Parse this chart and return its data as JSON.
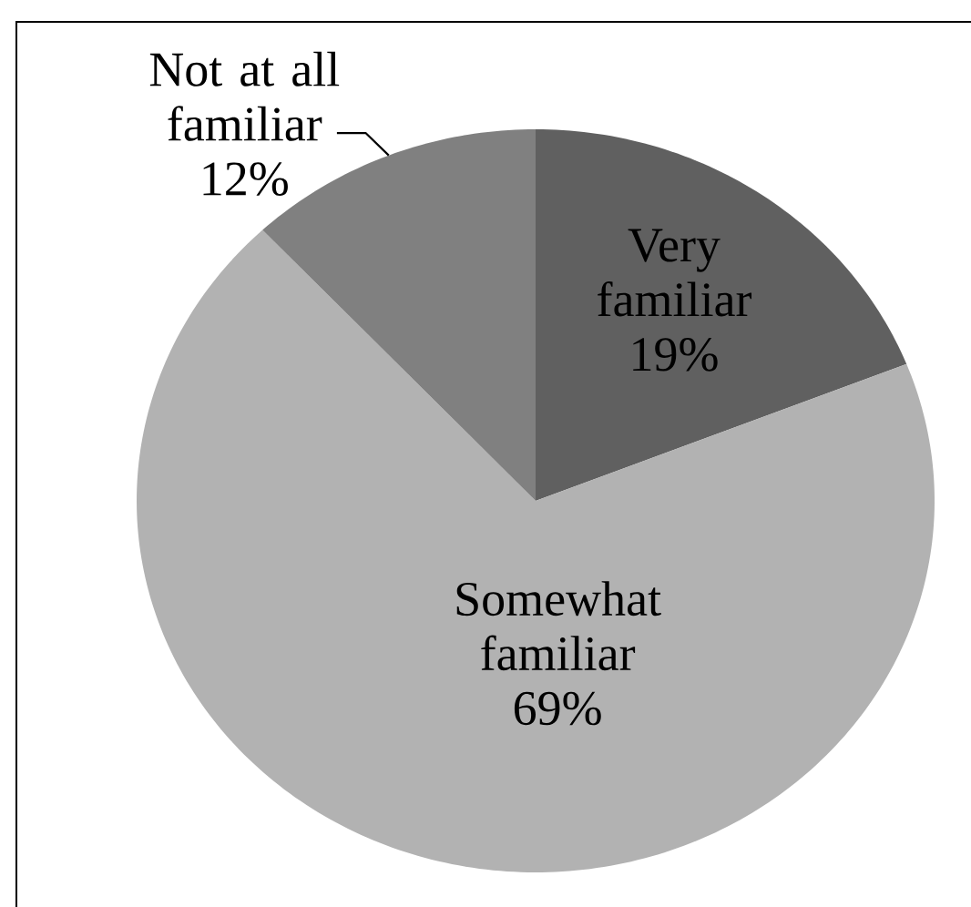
{
  "chart_data": {
    "type": "pie",
    "categories": [
      "Very familiar",
      "Somewhat familiar",
      "Not at all familiar"
    ],
    "values": [
      19,
      69,
      12
    ],
    "value_labels": [
      "19%",
      "69%",
      "12%"
    ],
    "colors": [
      "#606060",
      "#b2b2b2",
      "#808080"
    ]
  }
}
